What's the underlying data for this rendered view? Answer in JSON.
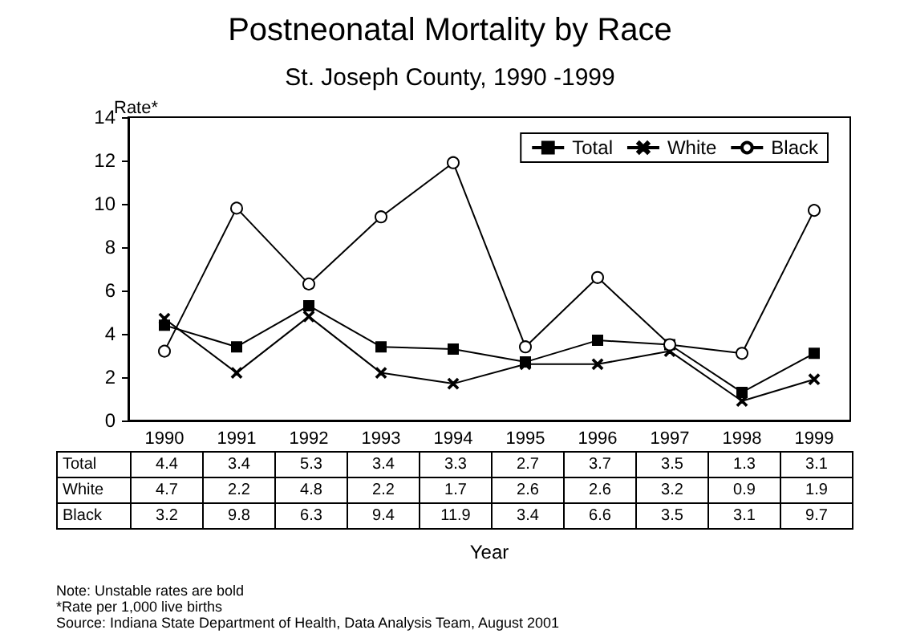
{
  "chart_data": {
    "type": "line",
    "title": "Postneonatal Mortality by Race",
    "subtitle": "St. Joseph County, 1990 -1999",
    "xlabel": "Year",
    "ylabel": "Rate*",
    "categories": [
      "1990",
      "1991",
      "1992",
      "1993",
      "1994",
      "1995",
      "1996",
      "1997",
      "1998",
      "1999"
    ],
    "series": [
      {
        "name": "Total",
        "color": "#000000",
        "marker": "square",
        "values": [
          4.4,
          3.4,
          5.3,
          3.4,
          3.3,
          2.7,
          3.7,
          3.5,
          1.3,
          3.1
        ]
      },
      {
        "name": "White",
        "color": "#000000",
        "marker": "cross",
        "values": [
          4.7,
          2.2,
          4.8,
          2.2,
          1.7,
          2.6,
          2.6,
          3.2,
          0.9,
          1.9
        ]
      },
      {
        "name": "Black",
        "color": "#000000",
        "marker": "circle",
        "values": [
          3.2,
          9.8,
          6.3,
          9.4,
          11.9,
          3.4,
          6.6,
          3.5,
          3.1,
          9.7
        ]
      }
    ],
    "ylim": [
      0,
      14
    ],
    "yticks": [
      0,
      2,
      4,
      6,
      8,
      10,
      12,
      14
    ],
    "grid": false,
    "legend": "top right",
    "data_labels": true,
    "annotations": [
      "Note:  Unstable rates are bold",
      "*Rate per 1,000 live births",
      "Source:  Indiana State Department of Health, Data Analysis Team, August 2001"
    ]
  }
}
